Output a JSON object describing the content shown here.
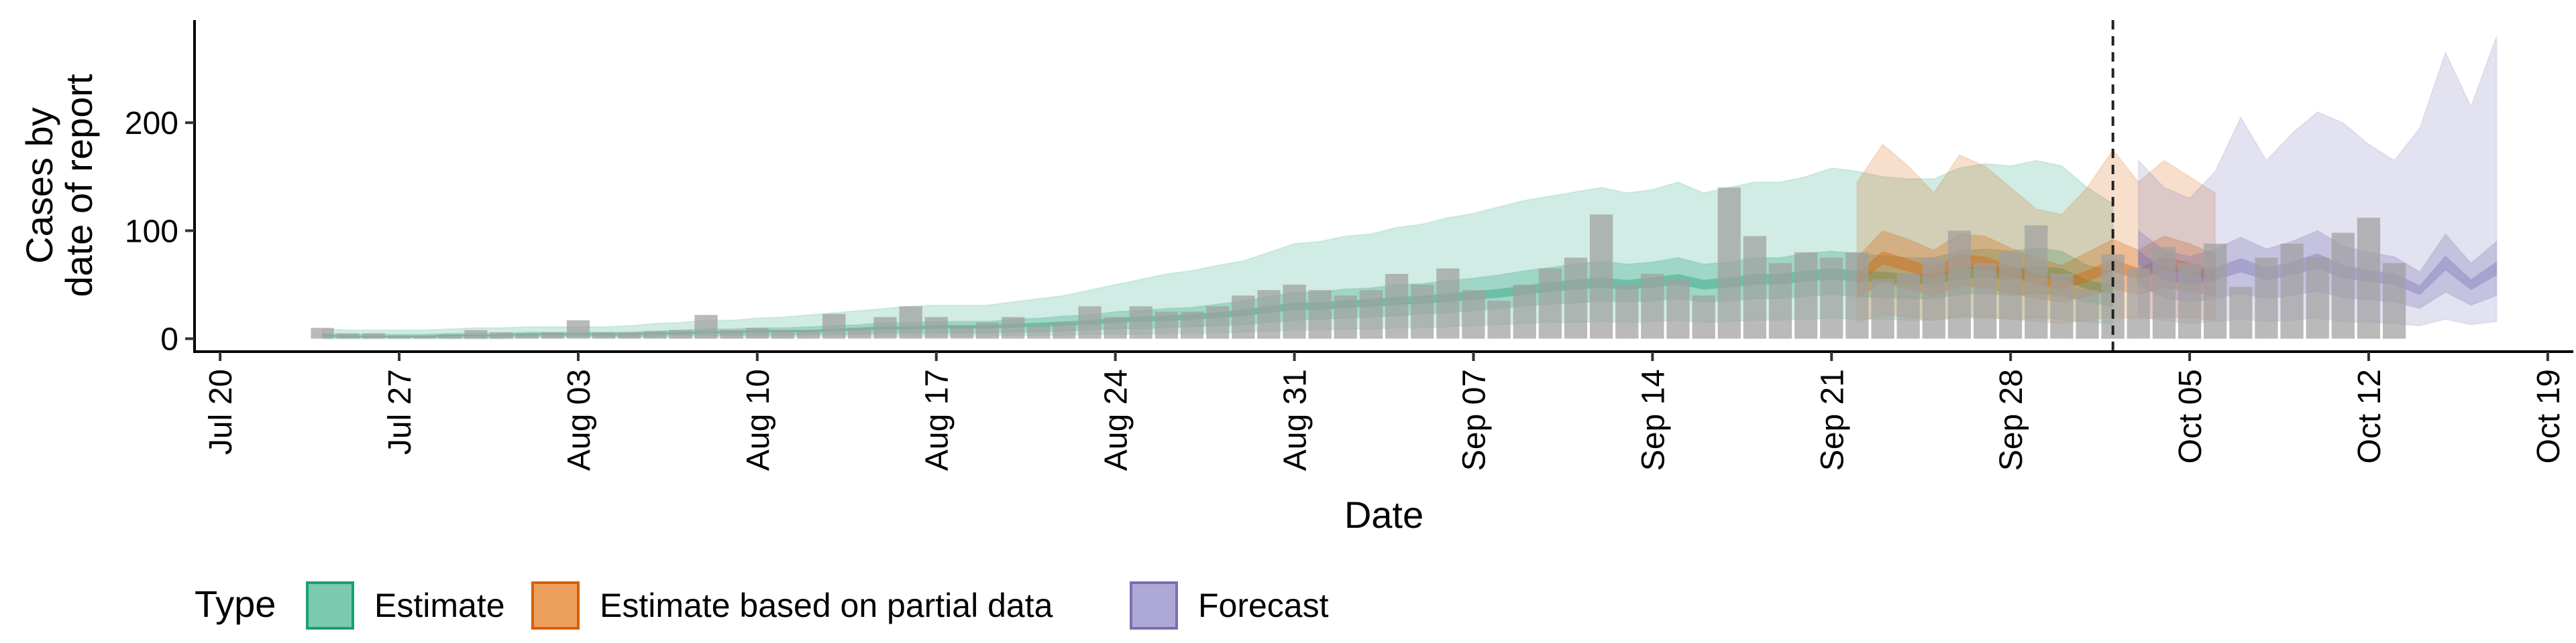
{
  "chart_data": {
    "type": "area",
    "xlabel": "Date",
    "ylabel_lines": [
      "Cases by",
      "date of report"
    ],
    "x_ticks": [
      "Jul 20",
      "Jul 27",
      "Aug 03",
      "Aug 10",
      "Aug 17",
      "Aug 24",
      "Aug 31",
      "Sep 07",
      "Sep 14",
      "Sep 21",
      "Sep 28",
      "Oct 05",
      "Oct 12",
      "Oct 19"
    ],
    "x_range": [
      "2020-07-19",
      "2020-10-20"
    ],
    "y_ticks": [
      0,
      100,
      200
    ],
    "ylim": [
      -12,
      295
    ],
    "forecast_line_date": "2020-10-02",
    "legend": {
      "title": "Type",
      "position": "bottom",
      "items": [
        {
          "label": "Estimate",
          "fill": "#7BC9AE",
          "stroke": "#1B9E77"
        },
        {
          "label": "Estimate based on partial data",
          "fill": "#EDA05E",
          "stroke": "#D95F02"
        },
        {
          "label": "Forecast",
          "fill": "#ADA8D6",
          "stroke": "#7570B3"
        }
      ]
    },
    "colors": {
      "estimate": "#1B9E77",
      "partial": "#D95F02",
      "forecast": "#7570B3",
      "bars": "#A0A0A0",
      "vline": "#222222"
    },
    "reported_cases": {
      "start_date": "2020-07-24",
      "values": [
        10,
        5,
        5,
        3,
        3,
        4,
        8,
        6,
        5,
        6,
        17,
        6,
        6,
        7,
        8,
        22,
        8,
        10,
        8,
        8,
        23,
        10,
        20,
        30,
        20,
        12,
        15,
        20,
        12,
        15,
        30,
        20,
        30,
        25,
        25,
        30,
        40,
        45,
        50,
        45,
        40,
        45,
        60,
        50,
        65,
        45,
        35,
        50,
        65,
        75,
        115,
        50,
        60,
        55,
        40,
        140,
        95,
        70,
        80,
        75,
        80,
        55,
        60,
        75,
        100,
        70,
        80,
        105,
        60,
        45,
        78,
        65,
        85,
        70,
        88,
        48,
        75,
        88,
        75,
        98,
        112,
        70
      ]
    },
    "series": [
      {
        "name": "Estimate",
        "start_date": "2020-07-24",
        "median": [
          3,
          2,
          2,
          2,
          2,
          3,
          3,
          3,
          4,
          4,
          4,
          4,
          4,
          5,
          5,
          6,
          6,
          7,
          7,
          7,
          8,
          9,
          10,
          10,
          11,
          11,
          11,
          12,
          13,
          14,
          15,
          17,
          18,
          19,
          20,
          22,
          24,
          27,
          30,
          30,
          32,
          33,
          35,
          36,
          38,
          40,
          42,
          45,
          48,
          50,
          52,
          50,
          52,
          55,
          50,
          52,
          55,
          55,
          58,
          60,
          58,
          57,
          55,
          55,
          60,
          62,
          60,
          62,
          60,
          50,
          45
        ],
        "inner_lo": [
          1,
          1,
          1,
          1,
          1,
          1,
          1,
          1,
          2,
          2,
          2,
          2,
          2,
          2,
          3,
          3,
          3,
          3,
          3,
          4,
          4,
          4,
          5,
          5,
          5,
          5,
          5,
          6,
          6,
          7,
          8,
          9,
          9,
          10,
          11,
          12,
          13,
          15,
          17,
          18,
          19,
          20,
          21,
          23,
          24,
          26,
          28,
          30,
          32,
          33,
          35,
          34,
          35,
          37,
          34,
          35,
          37,
          37,
          39,
          41,
          39,
          38,
          37,
          37,
          41,
          42,
          40,
          42,
          40,
          34,
          30
        ],
        "inner_hi": [
          5,
          4,
          4,
          4,
          4,
          5,
          5,
          5,
          6,
          6,
          6,
          6,
          6,
          7,
          8,
          9,
          9,
          10,
          10,
          11,
          12,
          13,
          15,
          15,
          16,
          16,
          16,
          18,
          19,
          21,
          22,
          25,
          26,
          28,
          29,
          32,
          35,
          39,
          43,
          43,
          46,
          47,
          50,
          51,
          54,
          56,
          59,
          63,
          66,
          69,
          72,
          69,
          71,
          75,
          69,
          71,
          75,
          75,
          79,
          81,
          79,
          77,
          75,
          75,
          81,
          83,
          81,
          84,
          81,
          68,
          62
        ],
        "outer_lo": [
          0,
          0,
          0,
          0,
          0,
          0,
          0,
          0,
          1,
          1,
          1,
          1,
          1,
          1,
          1,
          1,
          1,
          1,
          1,
          2,
          2,
          2,
          2,
          2,
          2,
          2,
          2,
          3,
          3,
          3,
          4,
          4,
          4,
          5,
          5,
          5,
          6,
          7,
          8,
          8,
          9,
          9,
          10,
          10,
          11,
          12,
          13,
          14,
          15,
          15,
          16,
          15,
          16,
          17,
          15,
          16,
          17,
          17,
          18,
          19,
          18,
          18,
          17,
          17,
          19,
          19,
          18,
          19,
          18,
          15,
          14
        ],
        "outer_hi": [
          9,
          8,
          8,
          8,
          8,
          9,
          10,
          10,
          11,
          11,
          11,
          11,
          12,
          14,
          15,
          17,
          17,
          19,
          20,
          22,
          24,
          26,
          28,
          30,
          31,
          31,
          31,
          34,
          37,
          40,
          45,
          50,
          55,
          60,
          63,
          68,
          72,
          80,
          88,
          90,
          95,
          97,
          103,
          106,
          112,
          116,
          122,
          128,
          132,
          136,
          140,
          135,
          138,
          145,
          135,
          140,
          145,
          145,
          150,
          158,
          155,
          150,
          148,
          148,
          158,
          162,
          160,
          165,
          160,
          140,
          125
        ]
      },
      {
        "name": "Estimate based on partial data",
        "start_date": "2020-09-22",
        "median": [
          55,
          75,
          68,
          60,
          72,
          70,
          62,
          55,
          50,
          58,
          68,
          60,
          70,
          65,
          58
        ],
        "inner_lo": [
          38,
          52,
          46,
          40,
          49,
          47,
          42,
          37,
          34,
          39,
          46,
          41,
          47,
          44,
          40
        ],
        "inner_hi": [
          75,
          100,
          92,
          82,
          97,
          95,
          84,
          75,
          68,
          80,
          92,
          82,
          95,
          88,
          78
        ],
        "outer_lo": [
          15,
          22,
          20,
          17,
          21,
          20,
          18,
          16,
          14,
          17,
          20,
          18,
          20,
          19,
          17
        ],
        "outer_hi": [
          145,
          180,
          160,
          135,
          170,
          160,
          140,
          120,
          115,
          140,
          175,
          145,
          165,
          150,
          135
        ]
      },
      {
        "name": "Forecast",
        "start_date": "2020-10-03",
        "median": [
          75,
          60,
          55,
          60,
          68,
          60,
          65,
          72,
          62,
          58,
          55,
          45,
          70,
          50,
          65
        ],
        "inner_lo": [
          50,
          38,
          34,
          37,
          42,
          37,
          40,
          44,
          38,
          36,
          34,
          28,
          43,
          31,
          40
        ],
        "inner_hi": [
          100,
          82,
          76,
          83,
          94,
          83,
          90,
          100,
          86,
          80,
          76,
          62,
          97,
          70,
          90
        ],
        "outer_lo": [
          20,
          17,
          14,
          16,
          18,
          16,
          17,
          19,
          16,
          15,
          14,
          12,
          18,
          13,
          16
        ],
        "outer_hi": [
          165,
          140,
          130,
          155,
          205,
          165,
          190,
          210,
          200,
          180,
          165,
          195,
          265,
          215,
          280
        ]
      }
    ]
  }
}
